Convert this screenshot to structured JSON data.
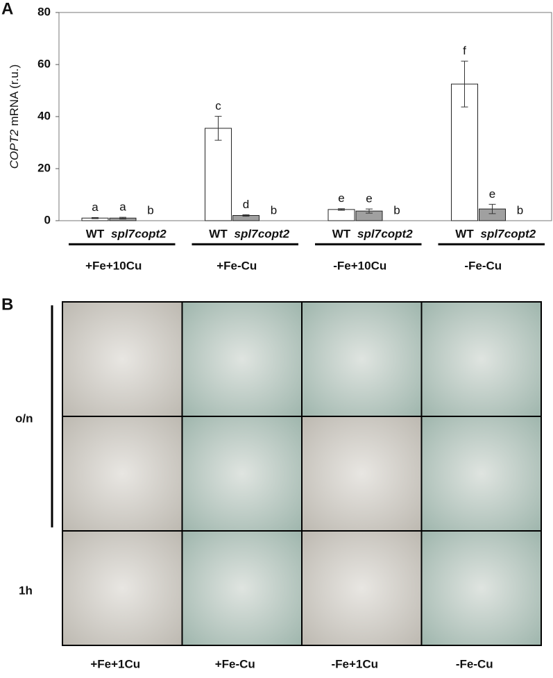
{
  "panel_a_label": "A",
  "panel_b_label": "B",
  "chart_data": {
    "type": "bar",
    "ylabel": {
      "gene": "COPT2",
      "rest": "mRNA (r.u.)"
    },
    "categories": [
      "WT",
      "spl7",
      "copt2",
      "WT",
      "spl7",
      "copt2",
      "WT",
      "spl7",
      "copt2",
      "WT",
      "spl7",
      "copt2"
    ],
    "groups": [
      "+Fe+10Cu",
      "+Fe-Cu",
      "-Fe+10Cu",
      "-Fe-Cu"
    ],
    "values": [
      1,
      1,
      0,
      35.5,
      2,
      0,
      4.3,
      3.7,
      0,
      52.5,
      4.5,
      0
    ],
    "errors": [
      0.2,
      0.3,
      0,
      4.6,
      0.3,
      0,
      0.3,
      0.8,
      0,
      8.8,
      1.8,
      0
    ],
    "annotations": [
      "a",
      "a",
      "b",
      "c",
      "d",
      "b",
      "e",
      "e",
      "b",
      "f",
      "e",
      "b"
    ],
    "bar_colors": [
      "#ffffff",
      "#a0a0a0",
      "#ffffff"
    ],
    "ylim": [
      0,
      80
    ],
    "yticks": [
      0,
      20,
      40,
      60,
      80
    ],
    "grid": false
  },
  "panel_b": {
    "columns": [
      "+Fe+1Cu",
      "+Fe-Cu",
      "-Fe+1Cu",
      "-Fe-Cu"
    ],
    "rows": [
      "o/n",
      "1h"
    ]
  }
}
